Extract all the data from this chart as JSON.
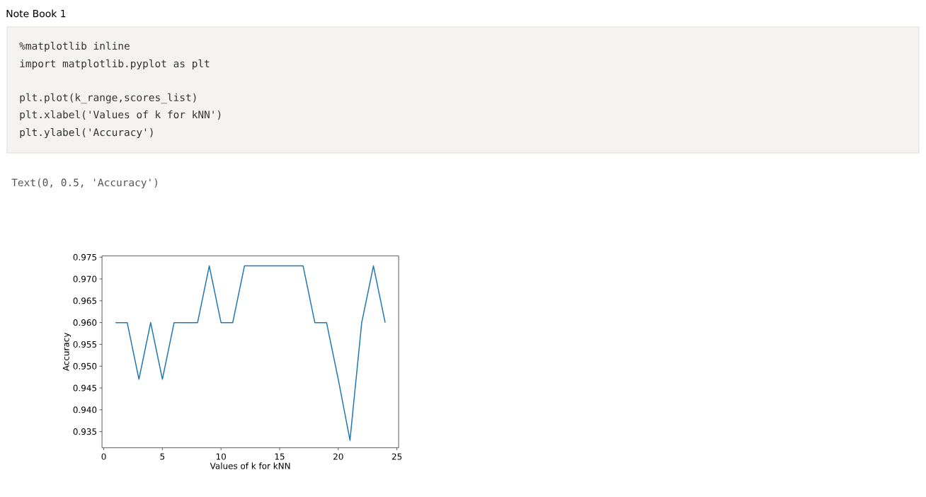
{
  "chart_data": {
    "type": "line",
    "title": "Note Book 1",
    "xlabel": "Values of k for kNN",
    "ylabel": "Accuracy",
    "x": [
      1,
      2,
      3,
      4,
      5,
      6,
      7,
      8,
      9,
      10,
      11,
      12,
      13,
      14,
      15,
      16,
      17,
      18,
      19,
      20,
      21,
      22,
      23,
      24
    ],
    "values": [
      0.96,
      0.96,
      0.947,
      0.96,
      0.947,
      0.96,
      0.96,
      0.96,
      0.973,
      0.96,
      0.96,
      0.973,
      0.973,
      0.973,
      0.973,
      0.973,
      0.973,
      0.96,
      0.96,
      0.947,
      0.933,
      0.96,
      0.973,
      0.96
    ],
    "color": "#1f77b4",
    "xlim": [
      -0.15,
      25.15
    ],
    "ylim": [
      0.9313,
      0.9753
    ],
    "xticks": [
      0,
      5,
      10,
      15,
      20,
      25
    ],
    "yticks": [
      0.935,
      {
        "value": 0.94,
        "label": "0.940"
      },
      0.945,
      {
        "value": 0.95,
        "label": "0.950"
      },
      0.955,
      {
        "value": 0.96,
        "label": "0.960"
      },
      0.965,
      {
        "value": 0.97,
        "label": "0.970"
      },
      0.975
    ],
    "annotations": [
      "%matplotlib inline",
      "import matplotlib.pyplot as plt",
      "plt.plot(k_range,scores_list)",
      "plt.xlabel('Values of k for kNN')",
      "plt.ylabel('Accuracy')",
      "Text(0, 0.5, 'Accuracy')"
    ]
  }
}
